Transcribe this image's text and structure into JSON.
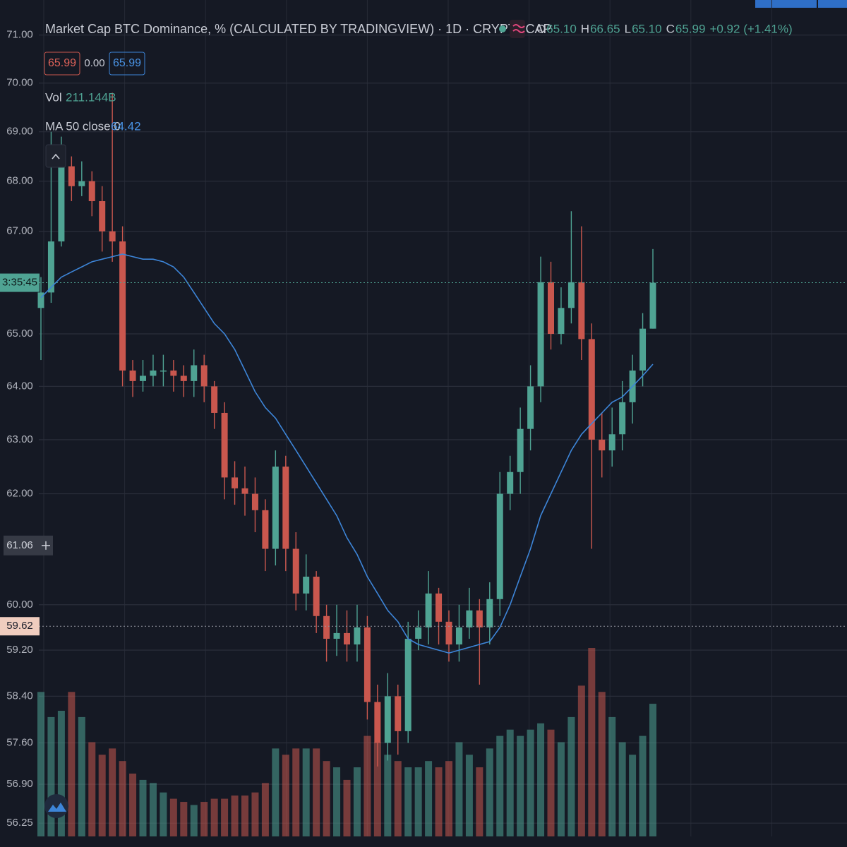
{
  "chart_data": {
    "type": "candlestick",
    "title": "Market Cap BTC Dominance, % (CALCULATED BY TRADINGVIEW) · 1D · CRYPTOCAP",
    "readout": [
      {
        "key": "O",
        "value": "65.10"
      },
      {
        "key": "H",
        "value": "66.65"
      },
      {
        "key": "L",
        "value": "65.10"
      },
      {
        "key": "C",
        "value": "65.99"
      }
    ],
    "change": "+0.92 (+1.41%)",
    "buttons": [
      "65.99",
      "0.00",
      "65.99"
    ],
    "log_y": true,
    "grid": true,
    "up_color": "#4fa393",
    "down_color": "#c9574e",
    "ylim": [
      56.03,
      71.74
    ],
    "yticks": [
      {
        "value": 71,
        "label": "71.00"
      },
      {
        "value": 70,
        "label": "70.00"
      },
      {
        "value": 69,
        "label": "69.00"
      },
      {
        "value": 68,
        "label": "68.00"
      },
      {
        "value": 67,
        "label": "67.00"
      },
      {
        "value": 65,
        "label": "65.00"
      },
      {
        "value": 64,
        "label": "64.00"
      },
      {
        "value": 63,
        "label": "63.00"
      },
      {
        "value": 62,
        "label": "62.00"
      },
      {
        "value": 60,
        "label": "60.00"
      },
      {
        "value": 59.2,
        "label": "59.20"
      },
      {
        "value": 58.4,
        "label": "58.40"
      },
      {
        "value": 57.6,
        "label": "57.60"
      },
      {
        "value": 56.9,
        "label": "56.90"
      },
      56.25
    ],
    "countdown": {
      "value": 65.99,
      "label": "3:35:45"
    },
    "crosshair_labels": [
      61.06,
      59.62
    ],
    "open": [
      65.5,
      65.8,
      66.8,
      68.3,
      67.9,
      68.0,
      67.6,
      67.0,
      66.8,
      64.3,
      64.1,
      64.2,
      64.3,
      64.3,
      64.2,
      64.1,
      64.4,
      64.0,
      63.5,
      62.3,
      62.1,
      62.0,
      61.7,
      61.0,
      62.5,
      61.0,
      60.2,
      60.5,
      59.8,
      59.4,
      59.5,
      59.3,
      59.6,
      58.3,
      57.6,
      58.4,
      57.8,
      59.4,
      59.6,
      60.2,
      59.7,
      59.3,
      59.6,
      59.9,
      59.6,
      60.1,
      62.0,
      62.4,
      63.2,
      64.0,
      66.0,
      65.0,
      65.5,
      66.0,
      64.9,
      63.0,
      62.8,
      63.1,
      63.7,
      64.3,
      65.1
    ],
    "high": [
      66.1,
      69.0,
      68.9,
      68.5,
      68.4,
      68.2,
      67.9,
      69.8,
      67.1,
      64.5,
      64.5,
      64.6,
      64.6,
      64.5,
      64.4,
      64.7,
      64.6,
      64.1,
      63.7,
      62.6,
      62.5,
      62.3,
      61.9,
      62.8,
      62.7,
      61.3,
      60.9,
      60.6,
      60.0,
      60.0,
      59.9,
      60.0,
      59.8,
      58.6,
      58.8,
      58.6,
      59.7,
      59.9,
      60.6,
      60.3,
      59.9,
      60.0,
      60.3,
      60.1,
      60.4,
      62.4,
      62.7,
      63.6,
      64.4,
      66.5,
      66.4,
      65.9,
      67.4,
      67.1,
      65.2,
      63.5,
      63.6,
      64.1,
      64.6,
      65.4,
      66.65
    ],
    "low": [
      64.5,
      65.6,
      66.7,
      67.6,
      67.7,
      67.3,
      66.6,
      66.4,
      64.0,
      63.8,
      63.9,
      64.0,
      64.0,
      63.9,
      63.8,
      63.8,
      63.7,
      63.2,
      61.9,
      61.8,
      61.6,
      61.3,
      60.6,
      60.7,
      60.6,
      59.9,
      59.9,
      59.5,
      59.0,
      59.1,
      59.0,
      59.0,
      58.0,
      57.2,
      57.3,
      57.4,
      57.6,
      59.2,
      59.3,
      59.3,
      59.0,
      59.0,
      59.4,
      58.6,
      59.3,
      59.8,
      61.7,
      62.0,
      62.8,
      63.7,
      64.7,
      64.8,
      65.2,
      64.5,
      61.0,
      62.3,
      62.5,
      62.8,
      63.3,
      64.0,
      65.1
    ],
    "close": [
      65.8,
      66.8,
      68.3,
      67.9,
      68.0,
      67.6,
      67.0,
      66.8,
      64.3,
      64.1,
      64.2,
      64.3,
      64.3,
      64.2,
      64.1,
      64.4,
      64.0,
      63.5,
      62.3,
      62.1,
      62.0,
      61.7,
      61.0,
      62.5,
      61.0,
      60.2,
      60.5,
      59.8,
      59.4,
      59.5,
      59.3,
      59.6,
      58.3,
      57.6,
      58.4,
      57.8,
      59.4,
      59.6,
      60.2,
      59.7,
      59.3,
      59.6,
      59.9,
      59.6,
      60.1,
      62.0,
      62.4,
      63.2,
      64.0,
      66.0,
      65.0,
      65.5,
      66.0,
      64.9,
      63.0,
      62.8,
      63.1,
      63.7,
      64.3,
      65.1,
      65.99
    ],
    "volume": {
      "name": "Vol",
      "value_label": "211.144B",
      "ylim": [
        0,
        300
      ],
      "values": [
        230,
        190,
        200,
        230,
        190,
        150,
        130,
        140,
        120,
        100,
        90,
        85,
        70,
        60,
        55,
        50,
        55,
        60,
        60,
        65,
        65,
        70,
        85,
        140,
        130,
        140,
        140,
        140,
        120,
        110,
        90,
        110,
        160,
        150,
        130,
        120,
        110,
        110,
        120,
        110,
        120,
        150,
        130,
        110,
        140,
        160,
        170,
        160,
        170,
        180,
        170,
        150,
        190,
        240,
        300,
        230,
        190,
        150,
        130,
        160,
        211.144
      ]
    },
    "ma": {
      "name": "MA 50 close 0",
      "value_label": "64.42",
      "color": "#3d85d8",
      "values": [
        65.7,
        65.9,
        66.1,
        66.2,
        66.3,
        66.4,
        66.45,
        66.5,
        66.55,
        66.5,
        66.45,
        66.45,
        66.4,
        66.3,
        66.1,
        65.8,
        65.5,
        65.2,
        65.0,
        64.7,
        64.3,
        63.9,
        63.6,
        63.4,
        63.1,
        62.8,
        62.5,
        62.2,
        61.9,
        61.6,
        61.2,
        60.9,
        60.5,
        60.2,
        59.9,
        59.7,
        59.4,
        59.3,
        59.25,
        59.2,
        59.15,
        59.2,
        59.25,
        59.3,
        59.35,
        59.6,
        60.0,
        60.5,
        61.0,
        61.6,
        62.0,
        62.4,
        62.8,
        63.1,
        63.3,
        63.5,
        63.7,
        63.8,
        64.0,
        64.2,
        64.42
      ]
    }
  }
}
